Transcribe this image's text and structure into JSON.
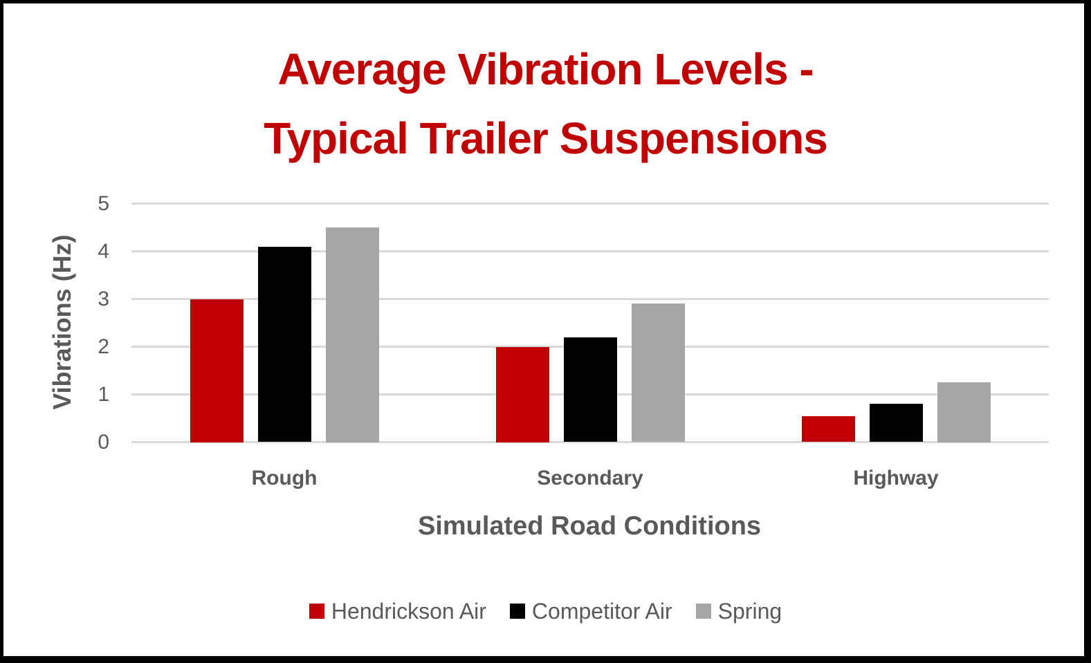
{
  "chart_data": {
    "type": "bar",
    "title": "Average Vibration Levels - Typical Trailer Suspensions",
    "title_lines": [
      "Average Vibration Levels -",
      "Typical Trailer Suspensions"
    ],
    "xlabel": "Simulated Road Conditions",
    "ylabel": "Vibrations (Hz)",
    "categories": [
      "Rough",
      "Secondary",
      "Highway"
    ],
    "series": [
      {
        "name": "Hendrickson Air",
        "color": "#c00000",
        "values": [
          3.0,
          2.0,
          0.55
        ]
      },
      {
        "name": "Competitor Air",
        "color": "#000000",
        "values": [
          4.1,
          2.2,
          0.8
        ]
      },
      {
        "name": "Spring",
        "color": "#a6a6a6",
        "values": [
          4.5,
          2.9,
          1.25
        ]
      }
    ],
    "ylim": [
      0,
      5
    ],
    "yticks": [
      "0",
      "1",
      "2",
      "3",
      "4",
      "5"
    ],
    "grid": true,
    "legend_position": "bottom"
  },
  "colors": {
    "title": "#c00000",
    "axis_text": "#595959",
    "gridline": "#d9d9d9",
    "frame": "#000000"
  }
}
